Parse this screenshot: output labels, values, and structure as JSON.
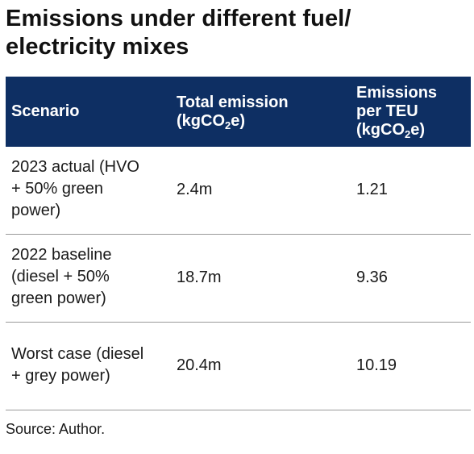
{
  "title_line1": "Emissions under different fuel/",
  "title_line2": "electricity mixes",
  "table": {
    "headers": {
      "scenario": "Scenario",
      "total_line1": "Total emission",
      "total_unit_pre": "(kgCO",
      "total_unit_sub": "2",
      "total_unit_post": "e)",
      "per_line1": "Emissions",
      "per_line2": "per TEU",
      "per_unit_pre": "(kgCO",
      "per_unit_sub": "2",
      "per_unit_post": "e)"
    },
    "rows": [
      {
        "scenario_lines": [
          "2023 actual (HVO",
          "+ 50% green",
          "power)"
        ],
        "total": "2.4m",
        "per_teu": "1.21"
      },
      {
        "scenario_lines": [
          "2022 baseline",
          "(diesel + 50%",
          "green power)"
        ],
        "total": "18.7m",
        "per_teu": "9.36"
      },
      {
        "scenario_lines": [
          "Worst case (diesel",
          "+ grey power)"
        ],
        "total": "20.4m",
        "per_teu": "10.19"
      }
    ]
  },
  "source": "Source: Author.",
  "colors": {
    "header_bg": "#0e2f63",
    "header_text": "#ffffff",
    "row_divider": "#9a9a9a"
  }
}
